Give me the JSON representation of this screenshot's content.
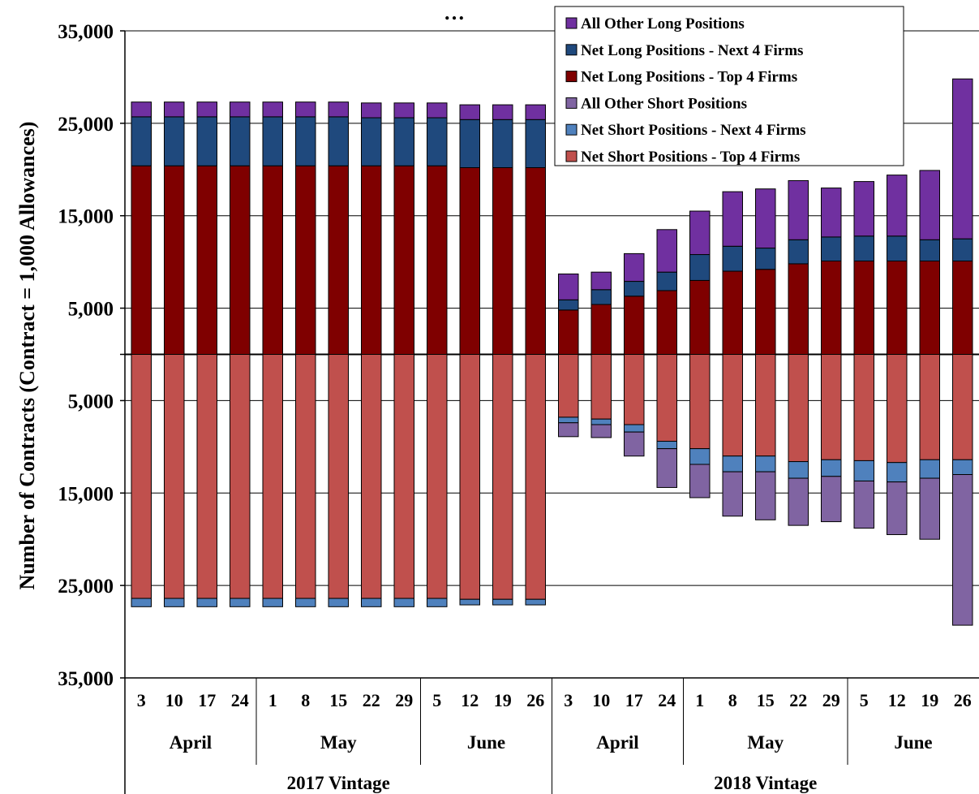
{
  "chart_data": {
    "type": "bar",
    "stacked": true,
    "title": "…",
    "ylabel": "Number of Contracts (Contract = 1,000 Allowances)",
    "ylim": [
      -35000,
      35000
    ],
    "y_ticks": [
      35000,
      25000,
      15000,
      5000,
      0,
      -5000,
      -15000,
      -25000,
      -35000
    ],
    "y_tick_labels": [
      "35,000",
      "25,000",
      "15,000",
      "5,000",
      "",
      "5,000",
      "15,000",
      "25,000",
      "35,000"
    ],
    "legend_position": "top-right",
    "grid": true,
    "categories": [
      "3",
      "10",
      "17",
      "24",
      "1",
      "8",
      "15",
      "22",
      "29",
      "5",
      "12",
      "19",
      "26",
      "3",
      "10",
      "17",
      "24",
      "1",
      "8",
      "15",
      "22",
      "29",
      "5",
      "12",
      "19",
      "26"
    ],
    "months": [
      {
        "label": "April",
        "count": 4
      },
      {
        "label": "May",
        "count": 5
      },
      {
        "label": "June",
        "count": 4
      },
      {
        "label": "April",
        "count": 4
      },
      {
        "label": "May",
        "count": 5
      },
      {
        "label": "June",
        "count": 4
      }
    ],
    "vintages": [
      {
        "label": "2017 Vintage",
        "count": 13
      },
      {
        "label": "2018 Vintage",
        "count": 13
      }
    ],
    "series": [
      {
        "name": "Net Long Positions - Top 4 Firms",
        "side": "long",
        "color": "#7f0000",
        "values": [
          20400,
          20400,
          20400,
          20400,
          20400,
          20400,
          20400,
          20400,
          20400,
          20400,
          20200,
          20200,
          20200,
          4800,
          5400,
          6300,
          6900,
          8000,
          9000,
          9200,
          9800,
          10100,
          10100,
          10100,
          10100,
          10100
        ]
      },
      {
        "name": "Net Long Positions - Next 4 Firms",
        "side": "long",
        "color": "#1f497d",
        "values": [
          5300,
          5300,
          5300,
          5300,
          5300,
          5300,
          5300,
          5200,
          5200,
          5200,
          5200,
          5200,
          5200,
          1100,
          1600,
          1600,
          2000,
          2800,
          2700,
          2300,
          2600,
          2600,
          2700,
          2700,
          2300,
          2400
        ]
      },
      {
        "name": "All Other Long Positions",
        "side": "long",
        "color": "#7030a0",
        "values": [
          1600,
          1600,
          1600,
          1600,
          1600,
          1600,
          1600,
          1600,
          1600,
          1600,
          1600,
          1600,
          1600,
          2800,
          1900,
          3000,
          4600,
          4700,
          5900,
          6400,
          6400,
          5300,
          5900,
          6600,
          7500,
          17300
        ]
      },
      {
        "name": "Net Short Positions - Top 4 Firms",
        "side": "short",
        "color": "#c0504d",
        "values": [
          26400,
          26400,
          26400,
          26400,
          26400,
          26400,
          26400,
          26400,
          26400,
          26400,
          26500,
          26500,
          26500,
          6800,
          7000,
          7600,
          9400,
          10200,
          11000,
          11000,
          11600,
          11400,
          11500,
          11700,
          11400,
          11400
        ]
      },
      {
        "name": "Net Short Positions - Next 4 Firms",
        "side": "short",
        "color": "#4f81bd",
        "values": [
          900,
          900,
          900,
          900,
          900,
          900,
          900,
          900,
          900,
          900,
          600,
          600,
          600,
          600,
          600,
          800,
          800,
          1700,
          1700,
          1700,
          1800,
          1800,
          2200,
          2100,
          2000,
          1600
        ]
      },
      {
        "name": "All Other Short Positions",
        "side": "short",
        "color": "#8064a2",
        "values": [
          0,
          0,
          0,
          0,
          0,
          0,
          0,
          0,
          0,
          0,
          0,
          0,
          0,
          1500,
          1400,
          2600,
          4200,
          3600,
          4800,
          5200,
          5100,
          4900,
          5100,
          5700,
          6600,
          16300
        ]
      }
    ],
    "legend_order": [
      "All Other Long Positions",
      "Net Long Positions - Next 4 Firms",
      "Net Long Positions - Top 4 Firms",
      "All Other Short Positions",
      "Net Short Positions - Next 4 Firms",
      "Net Short Positions - Top 4 Firms"
    ]
  }
}
